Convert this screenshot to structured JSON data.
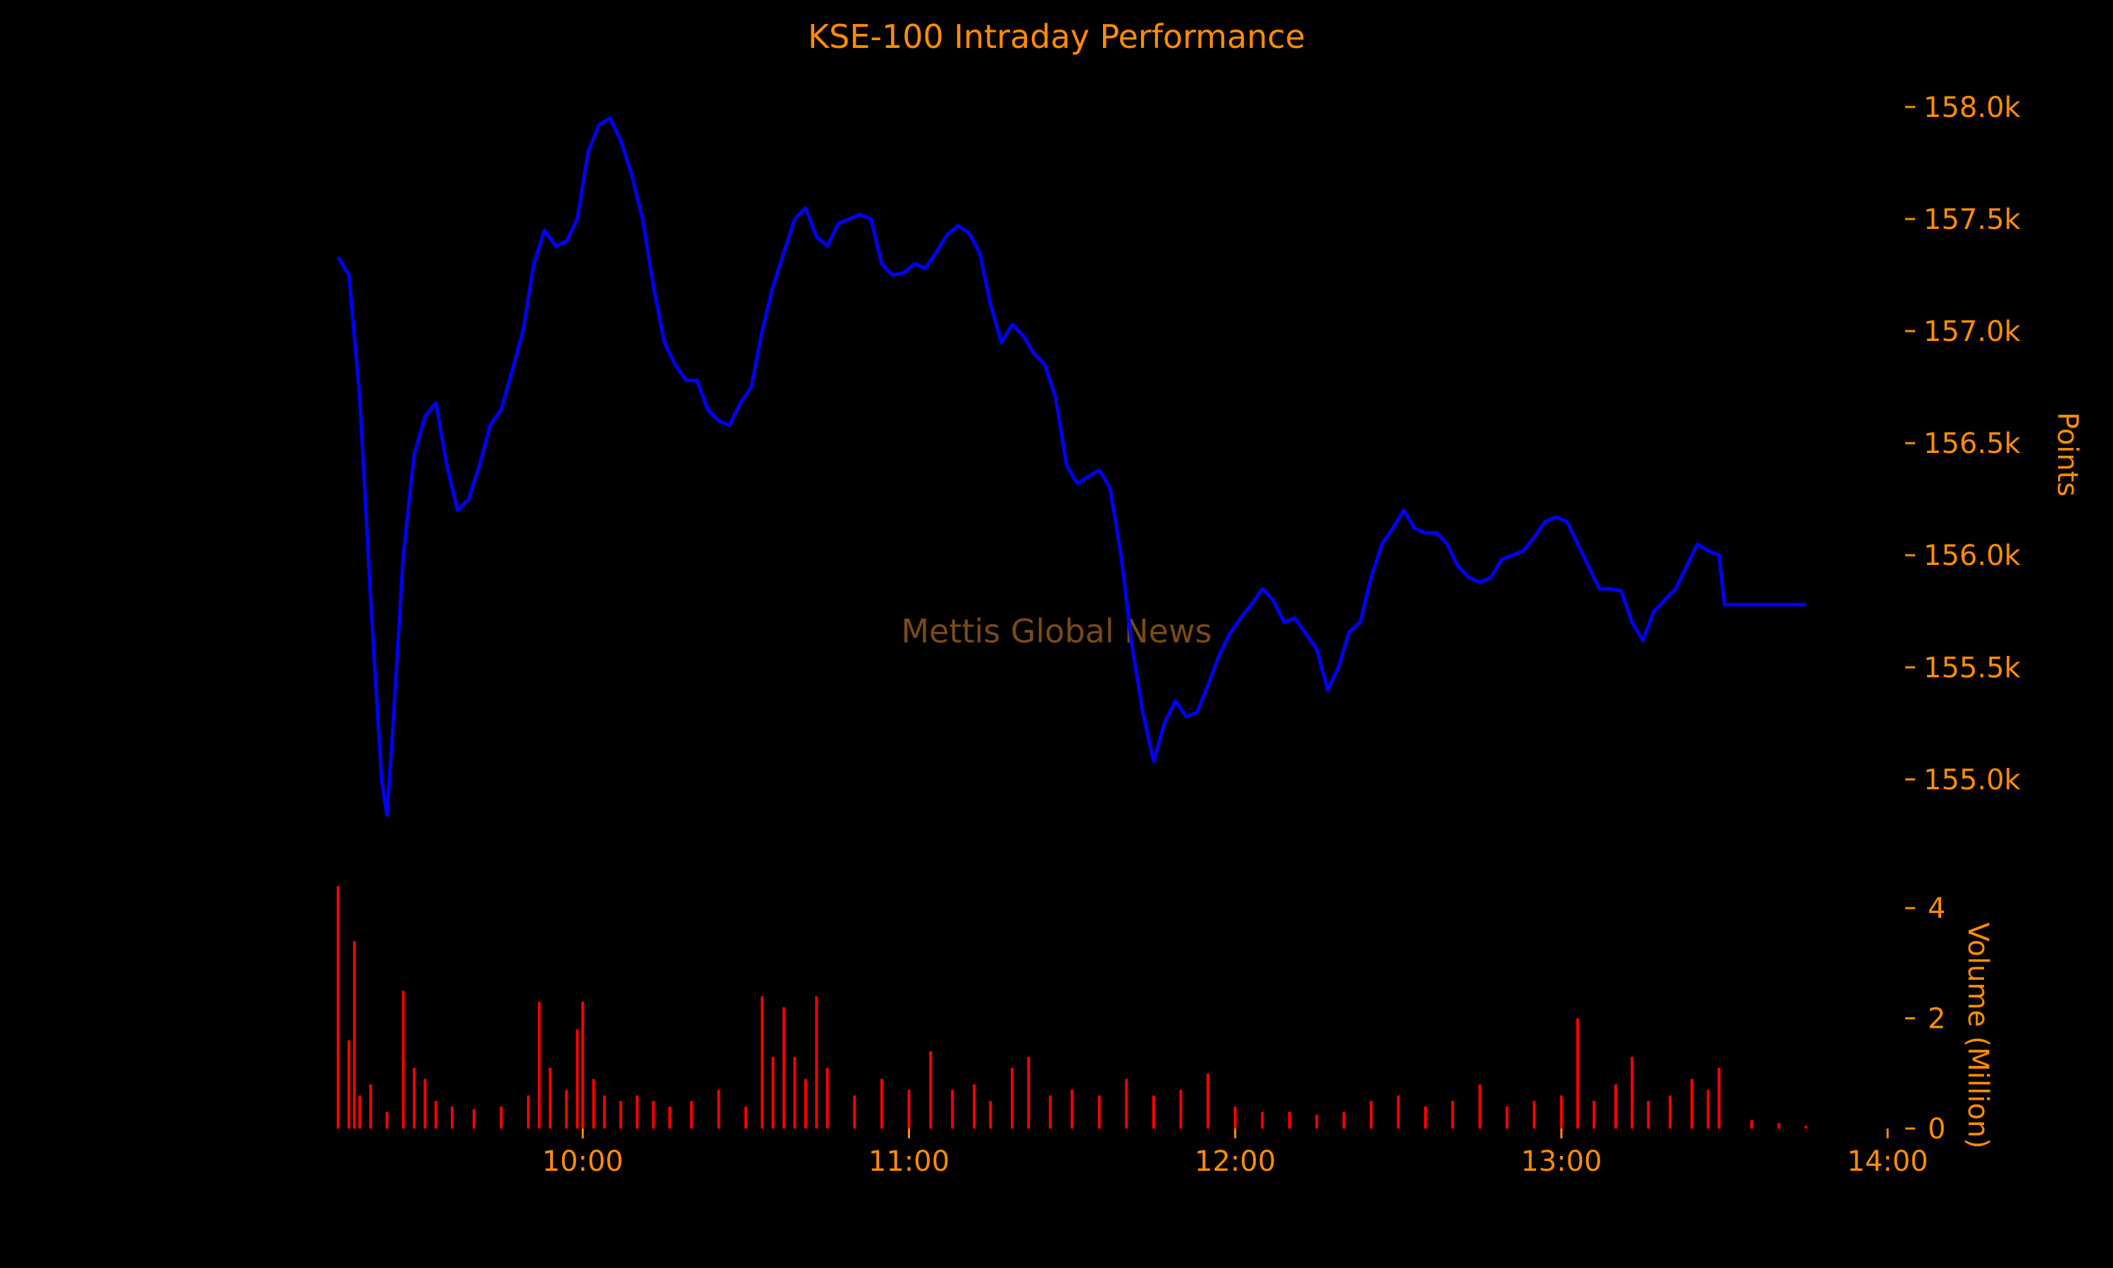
{
  "colors": {
    "background": "#000000",
    "text": "#ff8c00",
    "price_line": "#0000ff",
    "volume_bars": "#ff0000",
    "watermark": "#7a4a14"
  },
  "watermark": "Mettis Global News",
  "chart_data": {
    "type": "line",
    "title": "KSE-100 Intraday Performance",
    "grid": false,
    "legend": "none",
    "price": {
      "ylabel": "Points",
      "ylim": [
        154800,
        158100
      ],
      "yticks": [
        155000,
        155500,
        156000,
        156500,
        157000,
        157500,
        158000
      ],
      "ytick_labels": [
        "155.0k",
        "155.5k",
        "156.0k",
        "156.5k",
        "157.0k",
        "157.5k",
        "158.0k"
      ],
      "points": [
        [
          "09:15",
          157330
        ],
        [
          "09:17",
          157250
        ],
        [
          "09:19",
          156700
        ],
        [
          "09:21",
          155800
        ],
        [
          "09:23",
          155000
        ],
        [
          "09:24",
          154840
        ],
        [
          "09:25",
          155200
        ],
        [
          "09:27",
          156000
        ],
        [
          "09:29",
          156450
        ],
        [
          "09:31",
          156620
        ],
        [
          "09:33",
          156680
        ],
        [
          "09:35",
          156400
        ],
        [
          "09:37",
          156200
        ],
        [
          "09:39",
          156250
        ],
        [
          "09:41",
          156400
        ],
        [
          "09:43",
          156580
        ],
        [
          "09:45",
          156650
        ],
        [
          "09:47",
          156820
        ],
        [
          "09:49",
          157000
        ],
        [
          "09:51",
          157300
        ],
        [
          "09:53",
          157450
        ],
        [
          "09:55",
          157380
        ],
        [
          "09:57",
          157400
        ],
        [
          "09:59",
          157500
        ],
        [
          "10:01",
          157800
        ],
        [
          "10:03",
          157920
        ],
        [
          "10:05",
          157950
        ],
        [
          "10:07",
          157850
        ],
        [
          "10:09",
          157700
        ],
        [
          "10:11",
          157500
        ],
        [
          "10:13",
          157200
        ],
        [
          "10:15",
          156950
        ],
        [
          "10:17",
          156850
        ],
        [
          "10:19",
          156780
        ],
        [
          "10:21",
          156780
        ],
        [
          "10:23",
          156650
        ],
        [
          "10:25",
          156600
        ],
        [
          "10:27",
          156580
        ],
        [
          "10:29",
          156680
        ],
        [
          "10:31",
          156750
        ],
        [
          "10:33",
          157000
        ],
        [
          "10:35",
          157200
        ],
        [
          "10:37",
          157350
        ],
        [
          "10:39",
          157500
        ],
        [
          "10:41",
          157550
        ],
        [
          "10:43",
          157420
        ],
        [
          "10:45",
          157380
        ],
        [
          "10:47",
          157480
        ],
        [
          "10:49",
          157500
        ],
        [
          "10:51",
          157520
        ],
        [
          "10:53",
          157500
        ],
        [
          "10:55",
          157300
        ],
        [
          "10:57",
          157250
        ],
        [
          "10:59",
          157260
        ],
        [
          "11:01",
          157300
        ],
        [
          "11:03",
          157280
        ],
        [
          "11:05",
          157350
        ],
        [
          "11:07",
          157430
        ],
        [
          "11:09",
          157470
        ],
        [
          "11:11",
          157440
        ],
        [
          "11:13",
          157350
        ],
        [
          "11:15",
          157120
        ],
        [
          "11:17",
          156950
        ],
        [
          "11:19",
          157030
        ],
        [
          "11:21",
          156980
        ],
        [
          "11:23",
          156900
        ],
        [
          "11:25",
          156850
        ],
        [
          "11:27",
          156700
        ],
        [
          "11:29",
          156400
        ],
        [
          "11:31",
          156320
        ],
        [
          "11:33",
          156350
        ],
        [
          "11:35",
          156380
        ],
        [
          "11:37",
          156300
        ],
        [
          "11:39",
          156000
        ],
        [
          "11:41",
          155600
        ],
        [
          "11:43",
          155300
        ],
        [
          "11:45",
          155080
        ],
        [
          "11:47",
          155250
        ],
        [
          "11:49",
          155350
        ],
        [
          "11:51",
          155280
        ],
        [
          "11:53",
          155300
        ],
        [
          "11:55",
          155420
        ],
        [
          "11:57",
          155550
        ],
        [
          "11:59",
          155650
        ],
        [
          "12:01",
          155720
        ],
        [
          "12:03",
          155780
        ],
        [
          "12:05",
          155850
        ],
        [
          "12:07",
          155800
        ],
        [
          "12:09",
          155700
        ],
        [
          "12:11",
          155720
        ],
        [
          "12:13",
          155650
        ],
        [
          "12:15",
          155580
        ],
        [
          "12:17",
          155400
        ],
        [
          "12:19",
          155500
        ],
        [
          "12:21",
          155660
        ],
        [
          "12:23",
          155700
        ],
        [
          "12:25",
          155900
        ],
        [
          "12:27",
          156050
        ],
        [
          "12:29",
          156120
        ],
        [
          "12:31",
          156200
        ],
        [
          "12:33",
          156120
        ],
        [
          "12:35",
          156100
        ],
        [
          "12:37",
          156100
        ],
        [
          "12:39",
          156050
        ],
        [
          "12:41",
          155950
        ],
        [
          "12:43",
          155900
        ],
        [
          "12:45",
          155880
        ],
        [
          "12:47",
          155900
        ],
        [
          "12:49",
          155980
        ],
        [
          "12:51",
          156000
        ],
        [
          "12:53",
          156020
        ],
        [
          "12:55",
          156080
        ],
        [
          "12:57",
          156150
        ],
        [
          "12:59",
          156170
        ],
        [
          "13:01",
          156150
        ],
        [
          "13:03",
          156050
        ],
        [
          "13:05",
          155950
        ],
        [
          "13:07",
          155850
        ],
        [
          "13:09",
          155850
        ],
        [
          "13:11",
          155840
        ],
        [
          "13:13",
          155700
        ],
        [
          "13:15",
          155620
        ],
        [
          "13:17",
          155750
        ],
        [
          "13:19",
          155800
        ],
        [
          "13:21",
          155850
        ],
        [
          "13:23",
          155950
        ],
        [
          "13:25",
          156050
        ],
        [
          "13:27",
          156020
        ],
        [
          "13:29",
          156000
        ],
        [
          "13:30",
          155780
        ],
        [
          "13:45",
          155780
        ]
      ]
    },
    "volume": {
      "ylabel": "Volume (Million)",
      "ylim": [
        0,
        4.5
      ],
      "yticks": [
        0,
        2,
        4
      ],
      "ytick_labels": [
        "0",
        "2",
        "4"
      ],
      "bars": [
        [
          "09:15",
          4.4
        ],
        [
          "09:17",
          1.6
        ],
        [
          "09:18",
          3.4
        ],
        [
          "09:19",
          0.6
        ],
        [
          "09:21",
          0.8
        ],
        [
          "09:24",
          0.3
        ],
        [
          "09:27",
          2.5
        ],
        [
          "09:29",
          1.1
        ],
        [
          "09:31",
          0.9
        ],
        [
          "09:33",
          0.5
        ],
        [
          "09:36",
          0.4
        ],
        [
          "09:40",
          0.35
        ],
        [
          "09:45",
          0.4
        ],
        [
          "09:50",
          0.6
        ],
        [
          "09:52",
          2.3
        ],
        [
          "09:54",
          1.1
        ],
        [
          "09:57",
          0.7
        ],
        [
          "09:59",
          1.8
        ],
        [
          "10:00",
          2.3
        ],
        [
          "10:02",
          0.9
        ],
        [
          "10:04",
          0.6
        ],
        [
          "10:07",
          0.5
        ],
        [
          "10:10",
          0.6
        ],
        [
          "10:13",
          0.5
        ],
        [
          "10:16",
          0.4
        ],
        [
          "10:20",
          0.5
        ],
        [
          "10:25",
          0.7
        ],
        [
          "10:30",
          0.4
        ],
        [
          "10:33",
          2.4
        ],
        [
          "10:35",
          1.3
        ],
        [
          "10:37",
          2.2
        ],
        [
          "10:39",
          1.3
        ],
        [
          "10:41",
          0.9
        ],
        [
          "10:43",
          2.4
        ],
        [
          "10:45",
          1.1
        ],
        [
          "10:50",
          0.6
        ],
        [
          "10:55",
          0.9
        ],
        [
          "11:00",
          0.7
        ],
        [
          "11:04",
          1.4
        ],
        [
          "11:08",
          0.7
        ],
        [
          "11:12",
          0.8
        ],
        [
          "11:15",
          0.5
        ],
        [
          "11:19",
          1.1
        ],
        [
          "11:22",
          1.3
        ],
        [
          "11:26",
          0.6
        ],
        [
          "11:30",
          0.7
        ],
        [
          "11:35",
          0.6
        ],
        [
          "11:40",
          0.9
        ],
        [
          "11:45",
          0.6
        ],
        [
          "11:50",
          0.7
        ],
        [
          "11:55",
          1.0
        ],
        [
          "12:00",
          0.4
        ],
        [
          "12:05",
          0.3
        ],
        [
          "12:10",
          0.3
        ],
        [
          "12:15",
          0.25
        ],
        [
          "12:20",
          0.3
        ],
        [
          "12:25",
          0.5
        ],
        [
          "12:30",
          0.6
        ],
        [
          "12:35",
          0.4
        ],
        [
          "12:40",
          0.5
        ],
        [
          "12:45",
          0.8
        ],
        [
          "12:50",
          0.4
        ],
        [
          "12:55",
          0.5
        ],
        [
          "13:00",
          0.6
        ],
        [
          "13:03",
          2.0
        ],
        [
          "13:06",
          0.5
        ],
        [
          "13:10",
          0.8
        ],
        [
          "13:13",
          1.3
        ],
        [
          "13:16",
          0.5
        ],
        [
          "13:20",
          0.6
        ],
        [
          "13:24",
          0.9
        ],
        [
          "13:27",
          0.7
        ],
        [
          "13:29",
          1.1
        ],
        [
          "13:35",
          0.15
        ],
        [
          "13:40",
          0.1
        ],
        [
          "13:45",
          0.05
        ]
      ]
    },
    "x": {
      "range": [
        "09:15",
        "14:00"
      ],
      "ticks": [
        "10:00",
        "11:00",
        "12:00",
        "13:00",
        "14:00"
      ],
      "tick_labels": [
        "10:00",
        "11:00",
        "12:00",
        "13:00",
        "14:00"
      ]
    }
  }
}
